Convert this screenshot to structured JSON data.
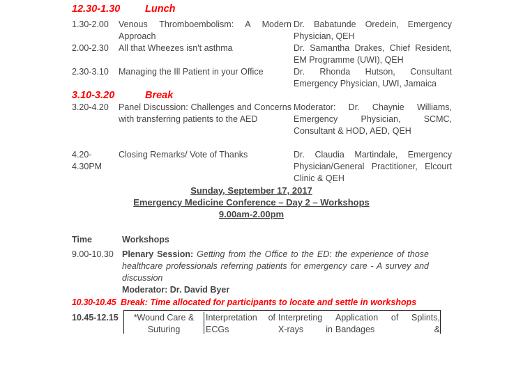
{
  "colors": {
    "text": "#454545",
    "accent_red": "#fe0000",
    "table_border": "#1a1a1a",
    "background": "#ffffff"
  },
  "day1": {
    "lunch_row": {
      "time": "12.30-1.30",
      "label": "Lunch"
    },
    "break_row": {
      "time": "3.10-3.20",
      "label": "Break"
    },
    "sessions": [
      {
        "time": "1.30-2.00",
        "title": "Venous Thromboembolism: A Modern Approach",
        "speaker": "Dr. Babatunde Oredein, Emergency Physician, QEH"
      },
      {
        "time": "2.00-2.30",
        "title": "All that Wheezes isn't asthma",
        "speaker": "Dr. Samantha Drakes, Chief Resident, EM Programme (UWI), QEH"
      },
      {
        "time": "2.30-3.10",
        "title": "Managing the Ill Patient in your Office",
        "speaker": "Dr. Rhonda Hutson, Consultant Emergency Physician, UWI, Jamaica"
      },
      {
        "time": "3.20-4.20",
        "title": "Panel Discussion: Challenges and Concerns with transferring patients to the AED",
        "speaker": "Moderator: Dr. Chaynie Williams, Emergency Physician, SCMC, Consultant & HOD, AED, QEH"
      },
      {
        "time": "4.20-4.30PM",
        "title": "Closing Remarks/ Vote of Thanks",
        "speaker": "Dr. Claudia Martindale, Emergency Physician/General Practitioner, Elcourt Clinic & QEH"
      }
    ]
  },
  "day2_heading": {
    "date": "Sunday, September 17, 2017",
    "title": "Emergency Medicine Conference – Day 2 – Workshops",
    "hours": "9.00am-2.00pm"
  },
  "day2": {
    "header": {
      "time": "Time",
      "workshops": "Workshops"
    },
    "plenary": {
      "time": "9.00-10.30",
      "label": "Plenary Session:",
      "description": "Getting from the Office to the ED: the experience of those healthcare professionals referring patients for emergency care - A survey and discussion",
      "moderator": "Moderator: Dr. David Byer"
    },
    "break_row": {
      "time": "10.30-10.45",
      "text": "Break: Time allocated for participants to locate and settle in workshops"
    },
    "workshop_row": {
      "time": "10.45-12.15",
      "cells": [
        "*Wound Care & Suturing",
        "Interpretation of ECGs",
        "Interpreting X-rays in",
        "Application of Splints, Bandages &"
      ]
    }
  }
}
